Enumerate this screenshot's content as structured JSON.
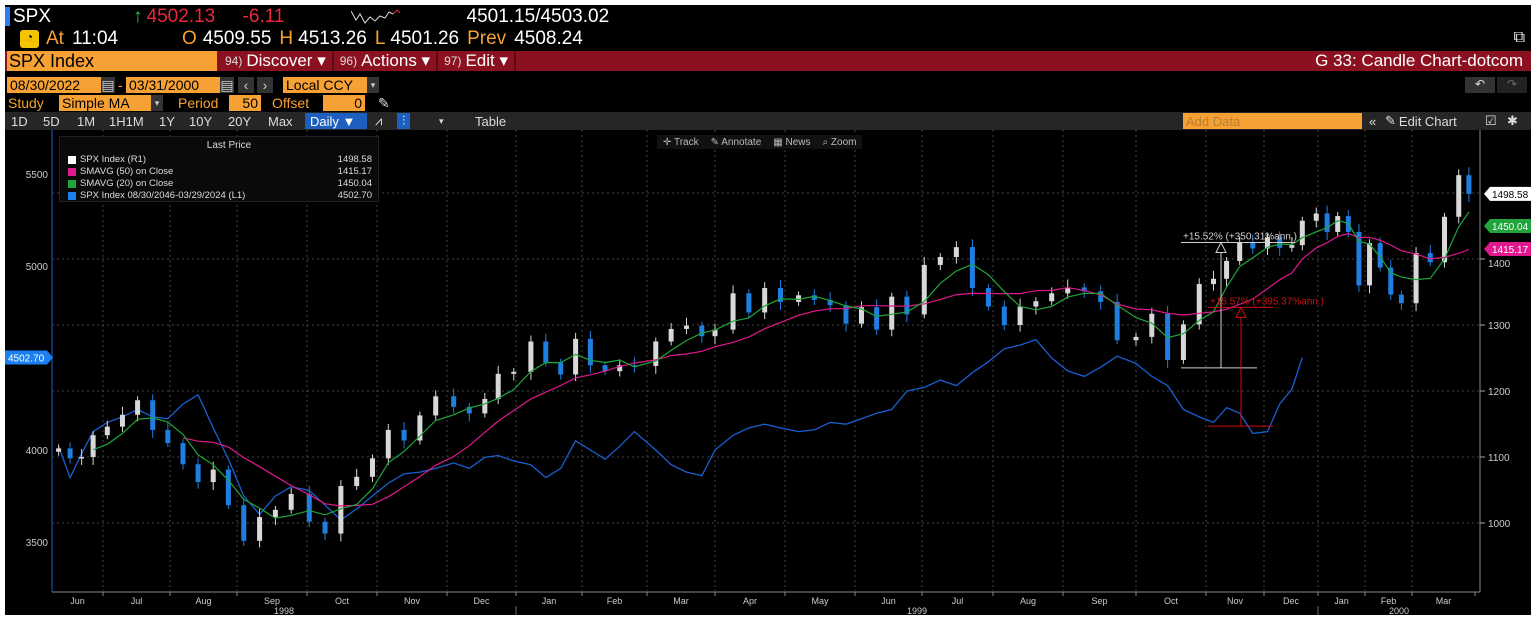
{
  "quote": {
    "ticker": "SPX",
    "arrow": "↑",
    "last": "4502.13",
    "change": "-6.11",
    "bidask": "4501.15/4503.02",
    "at_label": "At",
    "time": "11:04",
    "open_label": "O",
    "open": "4509.55",
    "high_label": "H",
    "high": "4513.26",
    "low_label": "L",
    "low": "4501.26",
    "prev_label": "Prev",
    "prev": "4508.24"
  },
  "security": "SPX Index",
  "menus": [
    {
      "num": "94)",
      "label": "Discover ▾"
    },
    {
      "num": "96)",
      "label": "Actions ▾"
    },
    {
      "num": "97)",
      "label": "Edit ▾"
    }
  ],
  "screen_title": "G 33: Candle Chart-dotcom",
  "dates": {
    "start": "08/30/2022",
    "sep": "-",
    "end": "03/31/2000",
    "currency": "Local CCY"
  },
  "study": {
    "label": "Study",
    "value": "Simple MA",
    "period_label": "Period",
    "period": "50",
    "offset_label": "Offset",
    "offset": "0"
  },
  "toolbar": {
    "ranges": [
      "1D",
      "5D",
      "1M",
      "1H1M",
      "1Y",
      "10Y",
      "20Y",
      "Max"
    ],
    "frequency": "Daily ▼",
    "table": "Table",
    "add_data_placeholder": "Add Data",
    "edit_chart": "Edit Chart"
  },
  "chart_tools": [
    "Track",
    "Annotate",
    "News",
    "Zoom"
  ],
  "colors": {
    "accent": "#f7a033",
    "menu_bar": "#8b1020",
    "candle_up": "#d8d8d8",
    "candle_down": "#1f7fe0",
    "sma50": "#e0188c",
    "sma20": "#1fa53a",
    "l1_line": "#1a5fd0",
    "annotation1": "#d0d0d0",
    "annotation2": "#cc1010"
  },
  "legend": {
    "title": "Last Price",
    "items": [
      {
        "label": "SPX Index  (R1)",
        "value": "1498.58",
        "color": "#ffffff"
      },
      {
        "label": "SMAVG (50)  on Close",
        "value": "1415.17",
        "color": "#e0188c"
      },
      {
        "label": "SMAVG (20)  on Close",
        "value": "1450.04",
        "color": "#1fa53a"
      },
      {
        "label": "SPX Index 08/30/2046-03/29/2024    (L1)",
        "value": "4502.70",
        "color": "#1a7ff0"
      }
    ]
  },
  "chart_data": {
    "type": "candlestick",
    "right_axis": {
      "ticks": [
        "1000",
        "1100",
        "1200",
        "1300",
        "1400"
      ],
      "range": [
        900,
        1580
      ]
    },
    "left_axis": {
      "ticks": [
        "3500",
        "4000",
        "5000",
        "5500"
      ],
      "range": [
        3200,
        5800
      ]
    },
    "x_months": [
      "Jun",
      "Jul",
      "Aug",
      "Sep",
      "Oct",
      "Nov",
      "Dec",
      "Jan",
      "Feb",
      "Mar",
      "Apr",
      "May",
      "Jun",
      "Jul",
      "Aug",
      "Sep",
      "Oct",
      "Nov",
      "Dec",
      "Jan",
      "Feb",
      "Mar"
    ],
    "x_years": [
      "1998",
      "1999",
      "2000"
    ],
    "tags": {
      "last": "1498.58",
      "sma20": "1450.04",
      "sma50": "1415.17",
      "l1": "4502.70"
    },
    "spx_weekly_close": [
      [
        "1998-06-05",
        1113
      ],
      [
        "1998-06-12",
        1098
      ],
      [
        "1998-06-19",
        1100
      ],
      [
        "1998-06-26",
        1133
      ],
      [
        "1998-07-03",
        1146
      ],
      [
        "1998-07-10",
        1164
      ],
      [
        "1998-07-17",
        1186
      ],
      [
        "1998-07-24",
        1141
      ],
      [
        "1998-07-31",
        1121
      ],
      [
        "1998-08-07",
        1089
      ],
      [
        "1998-08-14",
        1062
      ],
      [
        "1998-08-21",
        1081
      ],
      [
        "1998-08-28",
        1027
      ],
      [
        "1998-09-04",
        973
      ],
      [
        "1998-09-11",
        1009
      ],
      [
        "1998-09-18",
        1020
      ],
      [
        "1998-09-25",
        1044
      ],
      [
        "1998-10-02",
        1002
      ],
      [
        "1998-10-09",
        984
      ],
      [
        "1998-10-16",
        1056
      ],
      [
        "1998-10-23",
        1070
      ],
      [
        "1998-10-30",
        1098
      ],
      [
        "1998-11-06",
        1141
      ],
      [
        "1998-11-13",
        1125
      ],
      [
        "1998-11-20",
        1163
      ],
      [
        "1998-11-27",
        1192
      ],
      [
        "1998-12-04",
        1176
      ],
      [
        "1998-12-11",
        1166
      ],
      [
        "1998-12-18",
        1188
      ],
      [
        "1998-12-24",
        1226
      ],
      [
        "1998-12-31",
        1229
      ],
      [
        "1999-01-08",
        1275
      ],
      [
        "1999-01-15",
        1243
      ],
      [
        "1999-01-22",
        1225
      ],
      [
        "1999-01-29",
        1279
      ],
      [
        "1999-02-05",
        1239
      ],
      [
        "1999-02-12",
        1230
      ],
      [
        "1999-02-19",
        1239
      ],
      [
        "1999-02-26",
        1238
      ],
      [
        "1999-03-05",
        1275
      ],
      [
        "1999-03-12",
        1294
      ],
      [
        "1999-03-19",
        1299
      ],
      [
        "1999-03-26",
        1283
      ],
      [
        "1999-04-01",
        1293
      ],
      [
        "1999-04-09",
        1348
      ],
      [
        "1999-04-16",
        1319
      ],
      [
        "1999-04-23",
        1356
      ],
      [
        "1999-04-30",
        1335
      ],
      [
        "1999-05-07",
        1345
      ],
      [
        "1999-05-14",
        1338
      ],
      [
        "1999-05-21",
        1330
      ],
      [
        "1999-05-28",
        1302
      ],
      [
        "1999-06-04",
        1327
      ],
      [
        "1999-06-11",
        1293
      ],
      [
        "1999-06-18",
        1343
      ],
      [
        "1999-06-25",
        1316
      ],
      [
        "1999-07-02",
        1391
      ],
      [
        "1999-07-09",
        1403
      ],
      [
        "1999-07-16",
        1418
      ],
      [
        "1999-07-23",
        1356
      ],
      [
        "1999-07-30",
        1328
      ],
      [
        "1999-08-06",
        1300
      ],
      [
        "1999-08-13",
        1328
      ],
      [
        "1999-08-20",
        1336
      ],
      [
        "1999-08-27",
        1348
      ],
      [
        "1999-09-03",
        1357
      ],
      [
        "1999-09-10",
        1351
      ],
      [
        "1999-09-17",
        1335
      ],
      [
        "1999-09-24",
        1277
      ],
      [
        "1999-10-01",
        1282
      ],
      [
        "1999-10-08",
        1317
      ],
      [
        "1999-10-15",
        1247
      ],
      [
        "1999-10-22",
        1301
      ],
      [
        "1999-10-29",
        1362
      ],
      [
        "1999-11-05",
        1370
      ],
      [
        "1999-11-12",
        1397
      ],
      [
        "1999-11-19",
        1425
      ],
      [
        "1999-11-26",
        1416
      ],
      [
        "1999-12-03",
        1433
      ],
      [
        "1999-12-10",
        1417
      ],
      [
        "1999-12-17",
        1421
      ],
      [
        "1999-12-23",
        1458
      ],
      [
        "1999-12-31",
        1469
      ],
      [
        "2000-01-07",
        1441
      ],
      [
        "2000-01-14",
        1465
      ],
      [
        "2000-01-21",
        1441
      ],
      [
        "2000-01-28",
        1360
      ],
      [
        "2000-02-04",
        1424
      ],
      [
        "2000-02-11",
        1387
      ],
      [
        "2000-02-18",
        1346
      ],
      [
        "2000-02-25",
        1333
      ],
      [
        "2000-03-03",
        1409
      ],
      [
        "2000-03-10",
        1395
      ],
      [
        "2000-03-17",
        1464
      ],
      [
        "2000-03-24",
        1527
      ],
      [
        "2000-03-29",
        1498.58
      ]
    ],
    "l1_weekly": [
      4020,
      3850,
      3980,
      4100,
      4150,
      4180,
      4220,
      4180,
      4170,
      4250,
      4300,
      4120,
      3950,
      3750,
      3650,
      3750,
      3800,
      3780,
      3700,
      3620,
      3680,
      3750,
      3820,
      3870,
      3880,
      3900,
      3930,
      3900,
      3960,
      3970,
      3940,
      3920,
      3850,
      3900,
      4050,
      4000,
      3950,
      4020,
      4100,
      4000,
      3920,
      3880,
      3860,
      4000,
      4080,
      4120,
      4140,
      4120,
      4100,
      4110,
      4150,
      4140,
      4170,
      4200,
      4220,
      4320,
      4340,
      4380,
      4350,
      4420,
      4480,
      4550,
      4570,
      4600,
      4500,
      4430,
      4400,
      4450,
      4510,
      4470,
      4400,
      4350,
      4220,
      4180,
      4150,
      4230,
      4200,
      4090,
      4100,
      4250,
      4330,
      4502.7
    ],
    "annotations": [
      {
        "text": "+15.52% (+350.31%ann.)",
        "from": 1235,
        "to": 1425,
        "axis": "right"
      },
      {
        "text": "+15.57% (+395.37%ann.)",
        "from": 4130,
        "to": 4775,
        "axis": "left"
      }
    ]
  }
}
